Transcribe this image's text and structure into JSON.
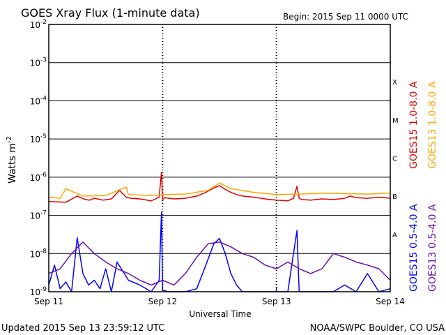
{
  "header": {
    "title": "GOES Xray Flux (1-minute data)",
    "begin": "Begin:  2015 Sep 11 0000 UTC"
  },
  "footer": {
    "updated": "Updated 2015 Sep 13 23:59:12 UTC",
    "credit": "NOAA/SWPC Boulder, CO USA"
  },
  "chart_data": {
    "type": "line",
    "title": "GOES Xray Flux (1-minute data)",
    "xlabel": "Universal Time",
    "ylabel": "Watts m",
    "ylabel_superscript": "-2",
    "yscale": "log",
    "ylim": [
      1e-09,
      0.01
    ],
    "xlim": [
      "Sep 11",
      "Sep 14"
    ],
    "y_ticks": [
      {
        "value": 0.01,
        "base": "10",
        "exp": "-2"
      },
      {
        "value": 0.001,
        "base": "10",
        "exp": "-3"
      },
      {
        "value": 0.0001,
        "base": "10",
        "exp": "-4"
      },
      {
        "value": 1e-05,
        "base": "10",
        "exp": "-5"
      },
      {
        "value": 1e-06,
        "base": "10",
        "exp": "-6"
      },
      {
        "value": 1e-07,
        "base": "10",
        "exp": "-7"
      },
      {
        "value": 1e-08,
        "base": "10",
        "exp": "-8"
      },
      {
        "value": 1e-09,
        "base": "10",
        "exp": "-9"
      }
    ],
    "x_ticks": [
      {
        "day": 0,
        "label": "Sep 11"
      },
      {
        "day": 1,
        "label": "Sep 12"
      },
      {
        "day": 2,
        "label": "Sep 13"
      },
      {
        "day": 3,
        "label": "Sep 14"
      }
    ],
    "flare_classes": [
      {
        "label": "X",
        "value": 0.0001
      },
      {
        "label": "M",
        "value": 1e-05
      },
      {
        "label": "C",
        "value": 1e-06
      },
      {
        "label": "B",
        "value": 1e-07
      },
      {
        "label": "A",
        "value": 1e-08
      }
    ],
    "grid": "horizontal",
    "legend_position": "right-vertical",
    "series": [
      {
        "name": "GOES15 1.0-8.0 A",
        "color": "#e00000",
        "x": [
          0,
          0.15,
          0.25,
          0.32,
          0.36,
          0.4,
          0.48,
          0.55,
          0.62,
          0.68,
          0.72,
          0.8,
          0.9,
          0.97,
          0.99,
          1.0,
          1.02,
          1.1,
          1.2,
          1.3,
          1.38,
          1.45,
          1.5,
          1.55,
          1.6,
          1.65,
          1.7,
          1.8,
          1.9,
          2.0,
          2.1,
          2.15,
          2.18,
          2.2,
          2.22,
          2.3,
          2.4,
          2.5,
          2.6,
          2.65,
          2.7,
          2.8,
          2.9,
          2.95,
          3.0
        ],
        "values": [
          2.3e-07,
          2.2e-07,
          3.2e-07,
          2.6e-07,
          2.5e-07,
          2.8e-07,
          2.5e-07,
          2.7e-07,
          4.5e-07,
          3e-07,
          2.8e-07,
          2.7e-07,
          2.4e-07,
          3e-07,
          1.35e-06,
          2.6e-07,
          2.9e-07,
          2.7e-07,
          2.8e-07,
          3.2e-07,
          4e-07,
          5.2e-07,
          6e-07,
          4.8e-07,
          4e-07,
          3.5e-07,
          3.2e-07,
          3e-07,
          2.7e-07,
          2.5e-07,
          2.4e-07,
          2.8e-07,
          5.8e-07,
          2.8e-07,
          2.6e-07,
          2.5e-07,
          2.7e-07,
          2.6e-07,
          2.8e-07,
          3.2e-07,
          2.9e-07,
          2.8e-07,
          3e-07,
          2.9e-07,
          2.8e-07
        ]
      },
      {
        "name": "GOES13 1.0-8.0 A",
        "color": "#ffa500",
        "x": [
          0,
          0.1,
          0.15,
          0.3,
          0.5,
          0.68,
          0.7,
          0.9,
          1.0,
          1.2,
          1.4,
          1.5,
          1.6,
          1.8,
          2.0,
          2.2,
          2.4,
          2.6,
          2.8,
          3.0
        ],
        "values": [
          3e-07,
          2.8e-07,
          5e-07,
          3.2e-07,
          3.3e-07,
          5.5e-07,
          3.5e-07,
          3.3e-07,
          3.5e-07,
          3.6e-07,
          4.5e-07,
          7e-07,
          5e-07,
          4e-07,
          3.5e-07,
          3.6e-07,
          3.8e-07,
          3.7e-07,
          3.6e-07,
          3.8e-07
        ]
      },
      {
        "name": "GOES15 0.5-4.0 A",
        "color": "#0000ff",
        "x": [
          0,
          0.05,
          0.1,
          0.15,
          0.2,
          0.25,
          0.3,
          0.35,
          0.4,
          0.45,
          0.5,
          0.55,
          0.6,
          0.7,
          0.8,
          0.9,
          0.97,
          0.99,
          1.0,
          1.05,
          1.1,
          1.2,
          1.3,
          1.38,
          1.45,
          1.5,
          1.55,
          1.6,
          1.65,
          1.7,
          1.8,
          1.9,
          2.0,
          2.1,
          2.18,
          2.2,
          2.3,
          2.4,
          2.5,
          2.6,
          2.7,
          2.8,
          2.9,
          3.0
        ],
        "values": [
          1.5e-09,
          5e-09,
          1.2e-09,
          1.8e-09,
          1e-09,
          2.6e-08,
          3e-09,
          1.5e-09,
          2e-09,
          1.2e-09,
          4e-09,
          1e-09,
          6e-09,
          2e-09,
          1.5e-09,
          1e-09,
          2e-09,
          1.2e-07,
          1.1e-09,
          1e-09,
          1e-09,
          1e-09,
          1.2e-09,
          5e-09,
          1.8e-08,
          2.5e-08,
          1e-08,
          3e-09,
          1.5e-09,
          1e-09,
          1e-09,
          1e-09,
          1e-09,
          1e-09,
          4e-08,
          1e-09,
          1e-09,
          1e-09,
          1e-09,
          1.5e-09,
          1e-09,
          3e-09,
          1e-09,
          1.2e-09
        ]
      },
      {
        "name": "GOES13 0.5-4.0 A",
        "color": "#6a0dad",
        "x": [
          0,
          0.1,
          0.2,
          0.3,
          0.4,
          0.5,
          0.6,
          0.7,
          0.8,
          0.9,
          1.0,
          1.1,
          1.2,
          1.3,
          1.4,
          1.5,
          1.6,
          1.7,
          1.8,
          1.9,
          2.0,
          2.1,
          2.2,
          2.3,
          2.4,
          2.5,
          2.6,
          2.7,
          2.8,
          2.9,
          3.0
        ],
        "values": [
          3e-09,
          4e-09,
          1e-08,
          2e-08,
          1e-08,
          6e-09,
          4e-09,
          3e-09,
          2e-09,
          1.5e-09,
          2e-09,
          1.5e-09,
          3e-09,
          8e-09,
          1.8e-08,
          2e-08,
          1.5e-08,
          1e-08,
          8e-09,
          5e-09,
          4e-09,
          6e-09,
          4e-09,
          3e-09,
          4e-09,
          1e-08,
          8e-09,
          6e-09,
          5e-09,
          4e-09,
          2e-09
        ]
      }
    ]
  }
}
